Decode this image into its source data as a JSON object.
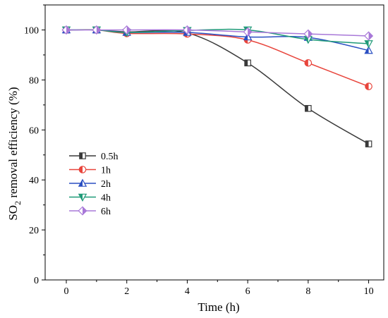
{
  "chart_data": {
    "type": "line",
    "xlabel": "Time (h)",
    "ylabel_main": "SO",
    "ylabel_sub": "2",
    "ylabel_rest": " removal efficiency (%)",
    "xlim": [
      -0.7,
      10.5
    ],
    "ylim": [
      0,
      110
    ],
    "xticks": [
      0,
      2,
      4,
      6,
      8,
      10
    ],
    "yticks": [
      0,
      20,
      40,
      60,
      80,
      100
    ],
    "x": [
      0,
      1,
      2,
      4,
      6,
      8,
      10
    ],
    "legend_position": "center-left",
    "grid": false,
    "series": [
      {
        "name": "0.5h",
        "color": "#3a3a3a",
        "marker": "square-half",
        "values": [
          100,
          100,
          99.2,
          98.8,
          86.8,
          68.6,
          54.4
        ]
      },
      {
        "name": "1h",
        "color": "#e8453c",
        "marker": "circle-half",
        "values": [
          100,
          100,
          98.6,
          98.4,
          96.0,
          86.8,
          77.4
        ]
      },
      {
        "name": "2h",
        "color": "#2a4fc2",
        "marker": "triangle-up-half",
        "values": [
          100,
          100,
          99.0,
          99.0,
          97.2,
          97.0,
          91.8
        ]
      },
      {
        "name": "4h",
        "color": "#1f9a78",
        "marker": "triangle-down-half",
        "values": [
          100,
          100,
          99.0,
          99.8,
          100,
          96.2,
          94.5
        ]
      },
      {
        "name": "6h",
        "color": "#a878d8",
        "marker": "diamond-half",
        "values": [
          100,
          100,
          100,
          100,
          99.2,
          98.4,
          97.6
        ]
      }
    ]
  }
}
